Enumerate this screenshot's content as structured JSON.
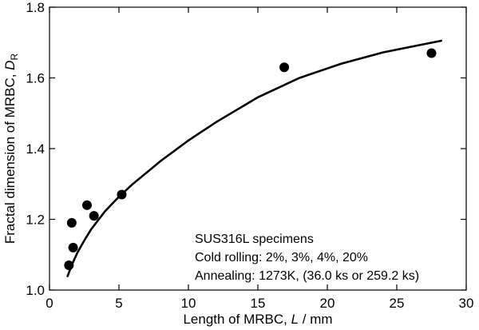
{
  "chart_data": {
    "type": "scatter",
    "title": "",
    "xlabel": {
      "prefix": "Length of MRBC, ",
      "var": "L",
      "suffix": " / mm"
    },
    "ylabel": {
      "prefix": "Fractal dimension of MRBC, ",
      "var": "D",
      "sub": "R"
    },
    "xlim": [
      0,
      30
    ],
    "ylim": [
      1.0,
      1.8
    ],
    "xticks": [
      0,
      5,
      10,
      15,
      20,
      25,
      30
    ],
    "yticks": [
      1.0,
      1.2,
      1.4,
      1.6,
      1.8
    ],
    "ytick_labels": [
      "1.0",
      "1.2",
      "1.4",
      "1.6",
      "1.8"
    ],
    "points": [
      {
        "x": 1.4,
        "y": 1.07
      },
      {
        "x": 1.6,
        "y": 1.19
      },
      {
        "x": 1.7,
        "y": 1.12
      },
      {
        "x": 2.7,
        "y": 1.24
      },
      {
        "x": 3.2,
        "y": 1.21
      },
      {
        "x": 5.2,
        "y": 1.27
      },
      {
        "x": 16.9,
        "y": 1.63
      },
      {
        "x": 27.5,
        "y": 1.67
      }
    ],
    "fit_curve": {
      "label": "fitted curve",
      "x": [
        1.3,
        1.6,
        2.0,
        2.5,
        3.0,
        4.0,
        5.0,
        6.0,
        8.0,
        10.0,
        12.0,
        15.0,
        18.0,
        21.0,
        24.0,
        26.0,
        28.2
      ],
      "y": [
        1.039,
        1.07,
        1.105,
        1.14,
        1.172,
        1.223,
        1.264,
        1.3,
        1.365,
        1.423,
        1.475,
        1.545,
        1.6,
        1.64,
        1.672,
        1.688,
        1.705
      ]
    },
    "annotation": [
      "SUS316L specimens",
      "Cold rolling: 2%, 3%, 4%, 20%",
      "Annealing: 1273K, (36.0 ks or 259.2 ks)"
    ],
    "legend": "none",
    "grid": false
  }
}
